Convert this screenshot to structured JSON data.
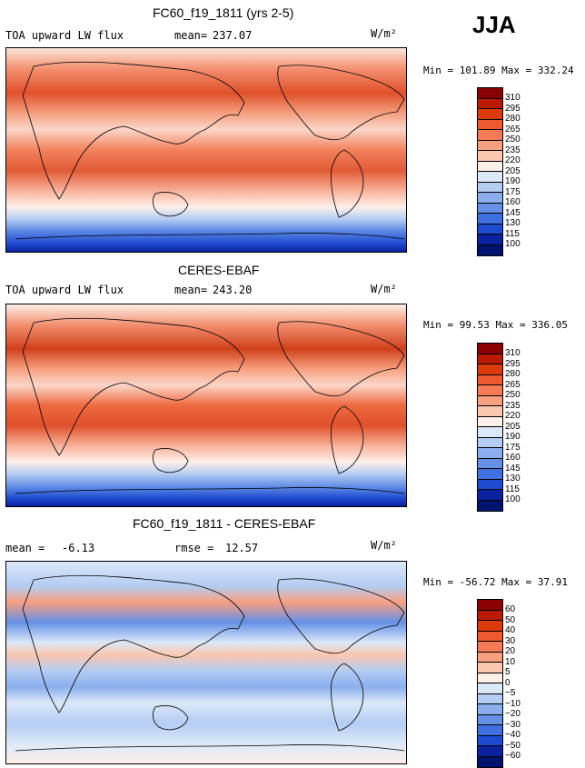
{
  "season": "JJA",
  "units": "W/m²",
  "panels": [
    {
      "title": "FC60_f19_1811 (yrs 2-5)",
      "left_label": "TOA upward LW flux",
      "stat_label": "mean=",
      "stat_value": "237.07",
      "minmax": "Min = 101.89 Max = 332.24",
      "levels": [
        "310",
        "295",
        "280",
        "265",
        "250",
        "235",
        "220",
        "205",
        "190",
        "175",
        "160",
        "145",
        "130",
        "115",
        "100"
      ],
      "colors": [
        "#8b0000",
        "#bb1a00",
        "#dd3a0a",
        "#ee5a30",
        "#f57a55",
        "#f8a080",
        "#fbc7b0",
        "#fdf0e8",
        "#dbe8f8",
        "#b4cdf3",
        "#8aaeee",
        "#6490e6",
        "#3f6fe0",
        "#1f4bd1",
        "#0a22a0",
        "#00136e"
      ]
    },
    {
      "title": "CERES-EBAF",
      "left_label": "TOA upward LW flux",
      "stat_label": "mean=",
      "stat_value": "243.20",
      "minmax": "Min =  99.53 Max = 336.05",
      "levels": [
        "310",
        "295",
        "280",
        "265",
        "250",
        "235",
        "220",
        "205",
        "190",
        "175",
        "160",
        "145",
        "130",
        "115",
        "100"
      ],
      "colors": [
        "#8b0000",
        "#bb1a00",
        "#dd3a0a",
        "#ee5a30",
        "#f57a55",
        "#f8a080",
        "#fbc7b0",
        "#fdf0e8",
        "#dbe8f8",
        "#b4cdf3",
        "#8aaeee",
        "#6490e6",
        "#3f6fe0",
        "#1f4bd1",
        "#0a22a0",
        "#00136e"
      ]
    },
    {
      "title": "FC60_f19_1811 - CERES-EBAF",
      "left_label": "mean =",
      "left_value": "-6.13",
      "stat_label": "rmse =",
      "stat_value": "12.57",
      "minmax": "Min = -56.72 Max =  37.91",
      "levels": [
        "60",
        "50",
        "40",
        "30",
        "20",
        "10",
        "5",
        "0",
        "−5",
        "−10",
        "−20",
        "−30",
        "−40",
        "−50",
        "−60"
      ],
      "colors": [
        "#8b0000",
        "#bb1a00",
        "#dd3a0a",
        "#ee5a30",
        "#f57a55",
        "#f8a080",
        "#fbc7b0",
        "#fdf0e8",
        "#dbe8f8",
        "#b4cdf3",
        "#8aaeee",
        "#6490e6",
        "#3f6fe0",
        "#1f4bd1",
        "#0a22a0",
        "#00136e"
      ]
    }
  ]
}
